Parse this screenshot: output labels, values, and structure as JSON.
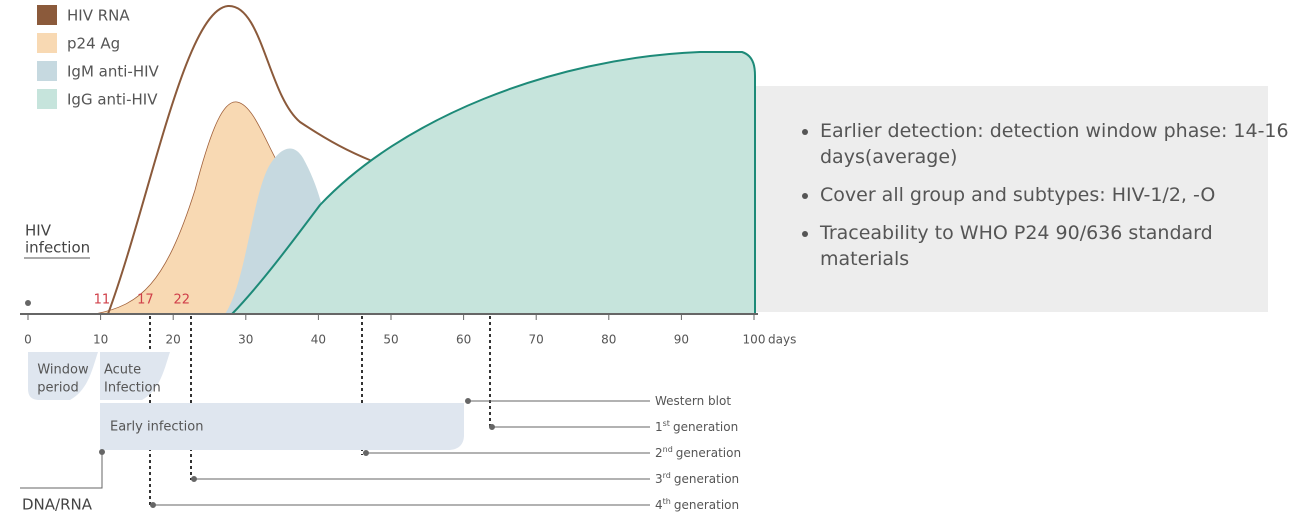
{
  "legend": [
    {
      "label": "HIV RNA",
      "color": "#8b5a3b"
    },
    {
      "label": "p24 Ag",
      "color": "#f8d9b3"
    },
    {
      "label": "IgM anti-HIV",
      "color": "#c6d9e0"
    },
    {
      "label": "IgG anti-HIV",
      "color": "#c6e4dc"
    }
  ],
  "infection": {
    "line1": "HIV",
    "line2": "infection"
  },
  "markers": [
    11,
    17,
    22
  ],
  "axis": {
    "ticks": [
      0,
      10,
      20,
      30,
      40,
      50,
      60,
      70,
      80,
      90,
      100
    ],
    "unit": "days"
  },
  "bullets": [
    "Earlier detection: detection window phase: 14-16 days(average)",
    "Cover all group and subtypes: HIV-1/2, -O",
    "Traceability to WHO P24 90/636 standard materials"
  ],
  "phases": {
    "window": {
      "line1": "Window",
      "line2": "period"
    },
    "acute": {
      "line1": "Acute",
      "line2": "Infection"
    },
    "early": "Early infection"
  },
  "tests": [
    {
      "base": "Western blot"
    },
    {
      "base": "1",
      "sup": "st",
      "rest": "generation"
    },
    {
      "base": "2",
      "sup": "nd",
      "rest": "generation"
    },
    {
      "base": "3",
      "sup": "rd",
      "rest": "generation"
    },
    {
      "base": "4",
      "sup": "th",
      "rest": "generation"
    }
  ],
  "dna_rna": "DNA/RNA"
}
